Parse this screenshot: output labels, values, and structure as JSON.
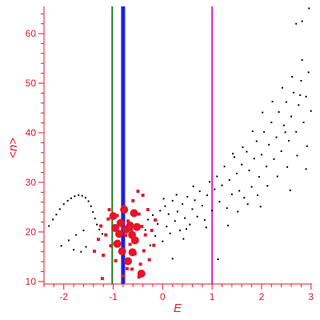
{
  "chart_data": {
    "type": "scatter",
    "title": "",
    "xlabel": "E",
    "ylabel": "<n>",
    "xlim": [
      -2.4,
      3.02
    ],
    "ylim": [
      9.5,
      65.5
    ],
    "x_ticks": [
      -2,
      -1,
      0,
      1,
      2,
      3
    ],
    "x_tick_labels": [
      "-2",
      "-1",
      "0",
      "1",
      "2",
      "3"
    ],
    "y_ticks": [
      10,
      20,
      30,
      40,
      50,
      60
    ],
    "y_tick_labels": [
      "10",
      "20",
      "30",
      "40",
      "50",
      "60"
    ],
    "grid": false,
    "legend": "none",
    "axis_color": "#e4162a",
    "vertical_lines": [
      {
        "x": -1.02,
        "color": "#1e7f1e",
        "width": "thin"
      },
      {
        "x": -0.8,
        "color": "#1f1fe0",
        "width": "thick"
      },
      {
        "x": 1.0,
        "color": "#e01ee0",
        "width": "thin"
      }
    ],
    "series": [
      {
        "color": "#000000",
        "marker": "small-dot",
        "points": [
          [
            -2.3,
            21.2
          ],
          [
            -2.22,
            22.5
          ],
          [
            -2.15,
            23.5
          ],
          [
            -2.08,
            24.6
          ],
          [
            -2.0,
            25.6
          ],
          [
            -1.92,
            26.3
          ],
          [
            -1.85,
            26.8
          ],
          [
            -1.78,
            27.2
          ],
          [
            -1.7,
            27.4
          ],
          [
            -1.63,
            27.3
          ],
          [
            -1.56,
            26.9
          ],
          [
            -1.5,
            26.2
          ],
          [
            -1.45,
            25.2
          ],
          [
            -1.41,
            24.0
          ],
          [
            -1.37,
            22.7
          ],
          [
            -1.33,
            21.5
          ],
          [
            -1.28,
            20.5
          ],
          [
            -1.22,
            19.6
          ],
          [
            -2.05,
            17.2
          ],
          [
            -1.9,
            18.3
          ],
          [
            -1.75,
            19.4
          ],
          [
            -1.6,
            20.3
          ],
          [
            -1.55,
            17.0
          ],
          [
            -1.3,
            18.6
          ],
          [
            -1.8,
            16.4
          ],
          [
            -1.65,
            16.0
          ],
          [
            -0.35,
            20.4
          ],
          [
            -0.3,
            22.5
          ],
          [
            -0.25,
            17.3
          ],
          [
            -0.2,
            23.4
          ],
          [
            -0.15,
            19.2
          ],
          [
            -0.1,
            21.6
          ],
          [
            -0.05,
            24.3
          ],
          [
            0.0,
            18.1
          ],
          [
            0.05,
            25.2
          ],
          [
            0.08,
            21.1
          ],
          [
            0.12,
            23.6
          ],
          [
            0.15,
            19.7
          ],
          [
            0.2,
            26.3
          ],
          [
            0.25,
            22.2
          ],
          [
            0.3,
            24.1
          ],
          [
            0.35,
            20.3
          ],
          [
            0.4,
            25.6
          ],
          [
            0.45,
            22.8
          ],
          [
            0.5,
            27.1
          ],
          [
            0.55,
            21.5
          ],
          [
            0.6,
            24.6
          ],
          [
            0.65,
            26.4
          ],
          [
            0.7,
            23.1
          ],
          [
            0.75,
            28.2
          ],
          [
            0.8,
            25.3
          ],
          [
            0.85,
            22.4
          ],
          [
            0.9,
            27.4
          ],
          [
            0.95,
            30.1
          ],
          [
            1.0,
            24.3
          ],
          [
            0.2,
            14.6
          ],
          [
            0.02,
            26.7
          ],
          [
            0.28,
            27.5
          ],
          [
            0.48,
            20.6
          ],
          [
            0.62,
            29.2
          ],
          [
            0.88,
            20.9
          ],
          [
            0.42,
            18.6
          ],
          [
            1.05,
            28.6
          ],
          [
            1.1,
            31.2
          ],
          [
            1.15,
            26.1
          ],
          [
            1.2,
            29.4
          ],
          [
            1.25,
            33.2
          ],
          [
            1.3,
            24.8
          ],
          [
            1.35,
            30.5
          ],
          [
            1.4,
            27.6
          ],
          [
            1.45,
            35.1
          ],
          [
            1.5,
            31.8
          ],
          [
            1.55,
            28.3
          ],
          [
            1.6,
            33.6
          ],
          [
            1.65,
            26.9
          ],
          [
            1.7,
            36.2
          ],
          [
            1.75,
            32.4
          ],
          [
            1.8,
            29.1
          ],
          [
            1.85,
            34.8
          ],
          [
            1.9,
            38.3
          ],
          [
            1.95,
            31.1
          ],
          [
            2.0,
            35.6
          ],
          [
            2.05,
            40.2
          ],
          [
            2.1,
            33.2
          ],
          [
            2.15,
            37.6
          ],
          [
            2.2,
            42.1
          ],
          [
            2.25,
            34.7
          ],
          [
            2.3,
            39.1
          ],
          [
            2.35,
            44.2
          ],
          [
            2.4,
            36.3
          ],
          [
            2.45,
            41.5
          ],
          [
            2.5,
            46.2
          ],
          [
            2.55,
            38.4
          ],
          [
            2.6,
            43.3
          ],
          [
            2.65,
            48.1
          ],
          [
            2.7,
            40.2
          ],
          [
            2.75,
            45.6
          ],
          [
            2.8,
            50.5
          ],
          [
            2.85,
            42.1
          ],
          [
            2.9,
            47.3
          ],
          [
            2.95,
            52.2
          ],
          [
            3.0,
            44.4
          ],
          [
            1.52,
            24.1
          ],
          [
            1.72,
            25.6
          ],
          [
            1.92,
            27.4
          ],
          [
            2.12,
            29.3
          ],
          [
            2.32,
            31.2
          ],
          [
            2.52,
            33.1
          ],
          [
            2.72,
            35.4
          ],
          [
            2.92,
            37.3
          ],
          [
            2.42,
            49.1
          ],
          [
            2.62,
            51.3
          ],
          [
            2.82,
            54.7
          ],
          [
            2.9,
            32.7
          ],
          [
            2.7,
            62.0
          ],
          [
            2.82,
            62.5
          ],
          [
            2.96,
            65.1
          ],
          [
            1.12,
            14.5
          ],
          [
            1.32,
            21.3
          ],
          [
            1.62,
            37.1
          ],
          [
            1.82,
            40.3
          ],
          [
            2.02,
            44.1
          ],
          [
            2.22,
            46.3
          ],
          [
            2.48,
            40.1
          ],
          [
            2.58,
            28.4
          ],
          [
            2.78,
            47.6
          ],
          [
            1.42,
            35.8
          ],
          [
            1.98,
            25.1
          ]
        ]
      },
      {
        "color": "#e4162a",
        "marker": "square",
        "points": [
          [
            -1.38,
            16.1
          ],
          [
            -1.3,
            18.5
          ],
          [
            -1.25,
            21.2
          ],
          [
            -1.2,
            15.3
          ],
          [
            -1.15,
            19.4
          ],
          [
            -1.1,
            22.6
          ],
          [
            -1.05,
            17.2
          ],
          [
            -1.0,
            20.5
          ],
          [
            -0.95,
            14.2
          ],
          [
            -0.92,
            23.3
          ],
          [
            -0.9,
            18.1
          ],
          [
            -0.86,
            21.4
          ],
          [
            -0.82,
            16.5
          ],
          [
            -0.78,
            25.1
          ],
          [
            -0.75,
            19.3
          ],
          [
            -0.72,
            12.6
          ],
          [
            -0.7,
            22.2
          ],
          [
            -0.66,
            17.5
          ],
          [
            -0.63,
            20.4
          ],
          [
            -0.6,
            26.3
          ],
          [
            -0.56,
            15.6
          ],
          [
            -0.52,
            18.5
          ],
          [
            -0.48,
            23.6
          ],
          [
            -0.45,
            13.5
          ],
          [
            -0.42,
            21.1
          ],
          [
            -0.38,
            16.2
          ],
          [
            -0.35,
            19.4
          ],
          [
            -0.3,
            24.5
          ],
          [
            -0.27,
            14.4
          ],
          [
            -0.22,
            20.3
          ],
          [
            -0.18,
            17.3
          ],
          [
            -0.15,
            22.4
          ],
          [
            -0.5,
            28.2
          ],
          [
            -0.4,
            27.4
          ],
          [
            -0.8,
            11.1
          ],
          [
            -1.22,
            10.6
          ],
          [
            -0.62,
            12.5
          ],
          [
            -1.08,
            24.5
          ],
          [
            -0.48,
            10.9
          ]
        ]
      },
      {
        "color": "#e4162a",
        "marker": "large-dot",
        "points": [
          [
            -1.0,
            23.2
          ],
          [
            -0.96,
            20.8
          ],
          [
            -0.92,
            17.6
          ],
          [
            -0.88,
            19.6
          ],
          [
            -0.85,
            21.8
          ],
          [
            -0.82,
            16.1
          ],
          [
            -0.78,
            24.5
          ],
          [
            -0.74,
            20.5
          ],
          [
            -0.7,
            14.1
          ],
          [
            -0.66,
            21.3
          ],
          [
            -0.61,
            15.9
          ],
          [
            -0.56,
            18.3
          ],
          [
            -0.52,
            21.0
          ],
          [
            -0.43,
            11.6
          ],
          [
            -0.62,
            19.4
          ],
          [
            -0.58,
            23.8
          ]
        ]
      }
    ]
  }
}
